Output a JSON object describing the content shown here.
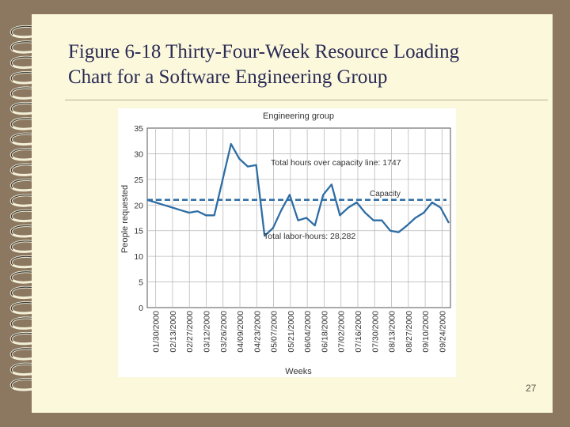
{
  "slide": {
    "title_line1": "Figure 6-18 Thirty-Four-Week Resource Loading",
    "title_line2": "Chart for a Software Engineering Group",
    "page_number": "27"
  },
  "chart_data": {
    "type": "line",
    "title": "Engineering group",
    "xlabel": "Weeks",
    "ylabel": "People requested",
    "ylim": [
      0,
      35
    ],
    "yticks": [
      0,
      5,
      10,
      15,
      20,
      25,
      30,
      35
    ],
    "grid": true,
    "x_tick_labels": [
      "01/30/2000",
      "02/13/2000",
      "02/27/2000",
      "03/12/2000",
      "03/26/2000",
      "04/09/2000",
      "04/23/2000",
      "05/07/2000",
      "05/21/2000",
      "06/04/2000",
      "06/18/2000",
      "07/02/2000",
      "07/16/2000",
      "07/30/2000",
      "08/13/2000",
      "08/27/2000",
      "09/10/2000",
      "09/24/2000"
    ],
    "series": [
      {
        "name": "",
        "color": "#2e6da4",
        "values": [
          21,
          20.5,
          20,
          19.5,
          19,
          18.5,
          18.8,
          18,
          18,
          25,
          31.9,
          29,
          27.5,
          27.8,
          14,
          15.5,
          19,
          22,
          17,
          17.5,
          16,
          22,
          24,
          18,
          19.5,
          20.5,
          18.5,
          17,
          17,
          15,
          14.7,
          16,
          17.5,
          18.5,
          20.5,
          19.5,
          16.5
        ]
      }
    ],
    "capacity": {
      "label": "Capacity",
      "value": 21,
      "color": "#2e6da4"
    },
    "annotations": {
      "over_capacity": "Total hours over capacity line: 1747",
      "total_labor": "Total labor-hours: 28,282"
    }
  }
}
